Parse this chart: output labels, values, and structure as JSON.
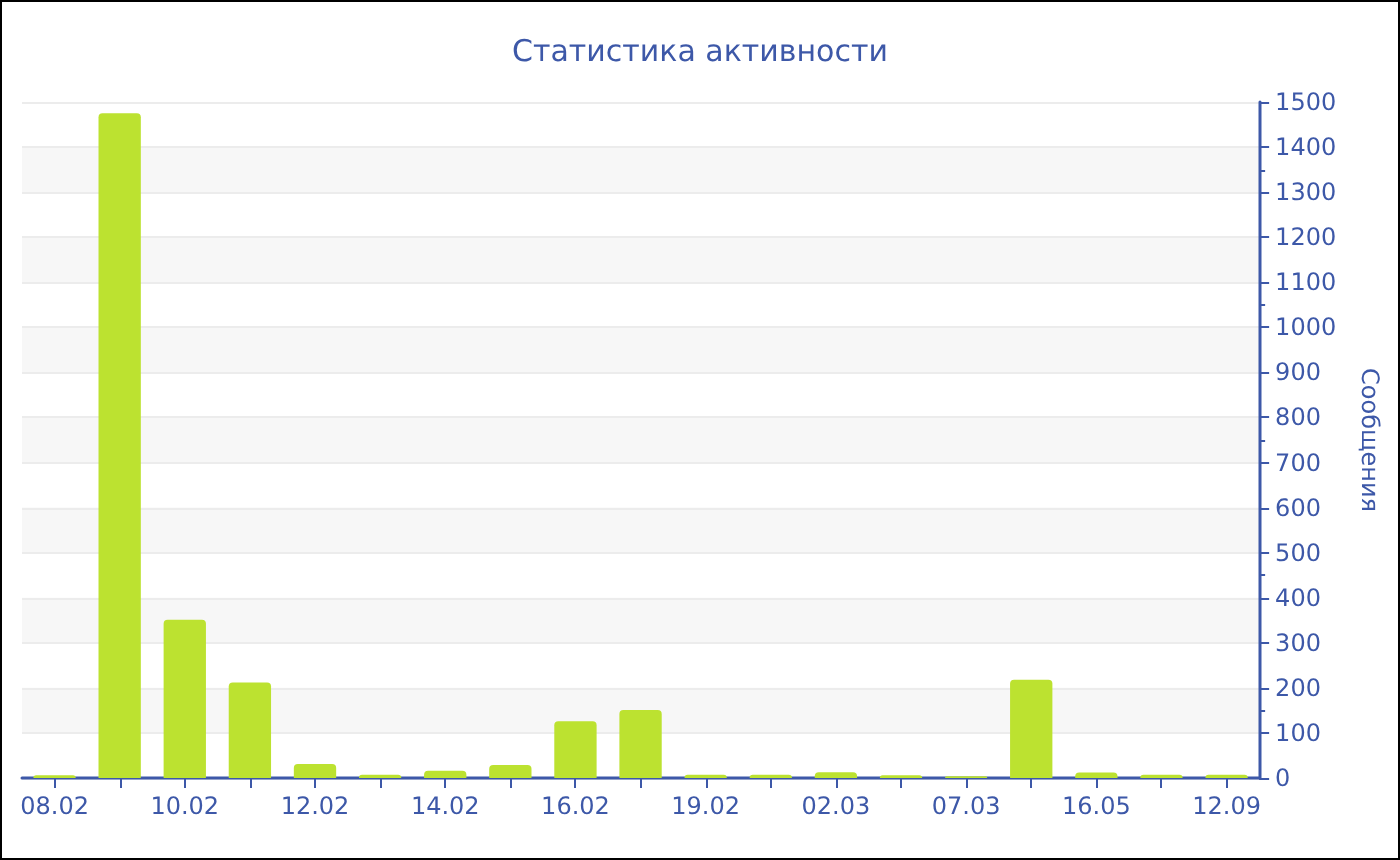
{
  "chart_data": {
    "type": "bar",
    "title": "Статистика активности",
    "ylabel": "Сообщения",
    "categories": [
      "08.02",
      null,
      "10.02",
      null,
      "12.02",
      null,
      "14.02",
      null,
      "16.02",
      null,
      "19.02",
      null,
      "02.03",
      null,
      "07.03",
      null,
      "16.05",
      null,
      "12.09"
    ],
    "values": [
      6,
      1475,
      351,
      212,
      31,
      7,
      16,
      29,
      126,
      151,
      7,
      7,
      13,
      6,
      4,
      218,
      12,
      7,
      7
    ],
    "color": "#bce230",
    "ylim": [
      0,
      1500
    ],
    "yticks": [
      0,
      100,
      200,
      300,
      400,
      500,
      600,
      700,
      800,
      900,
      1000,
      1100,
      1200,
      1300,
      1400,
      1500
    ],
    "grid": "y"
  }
}
